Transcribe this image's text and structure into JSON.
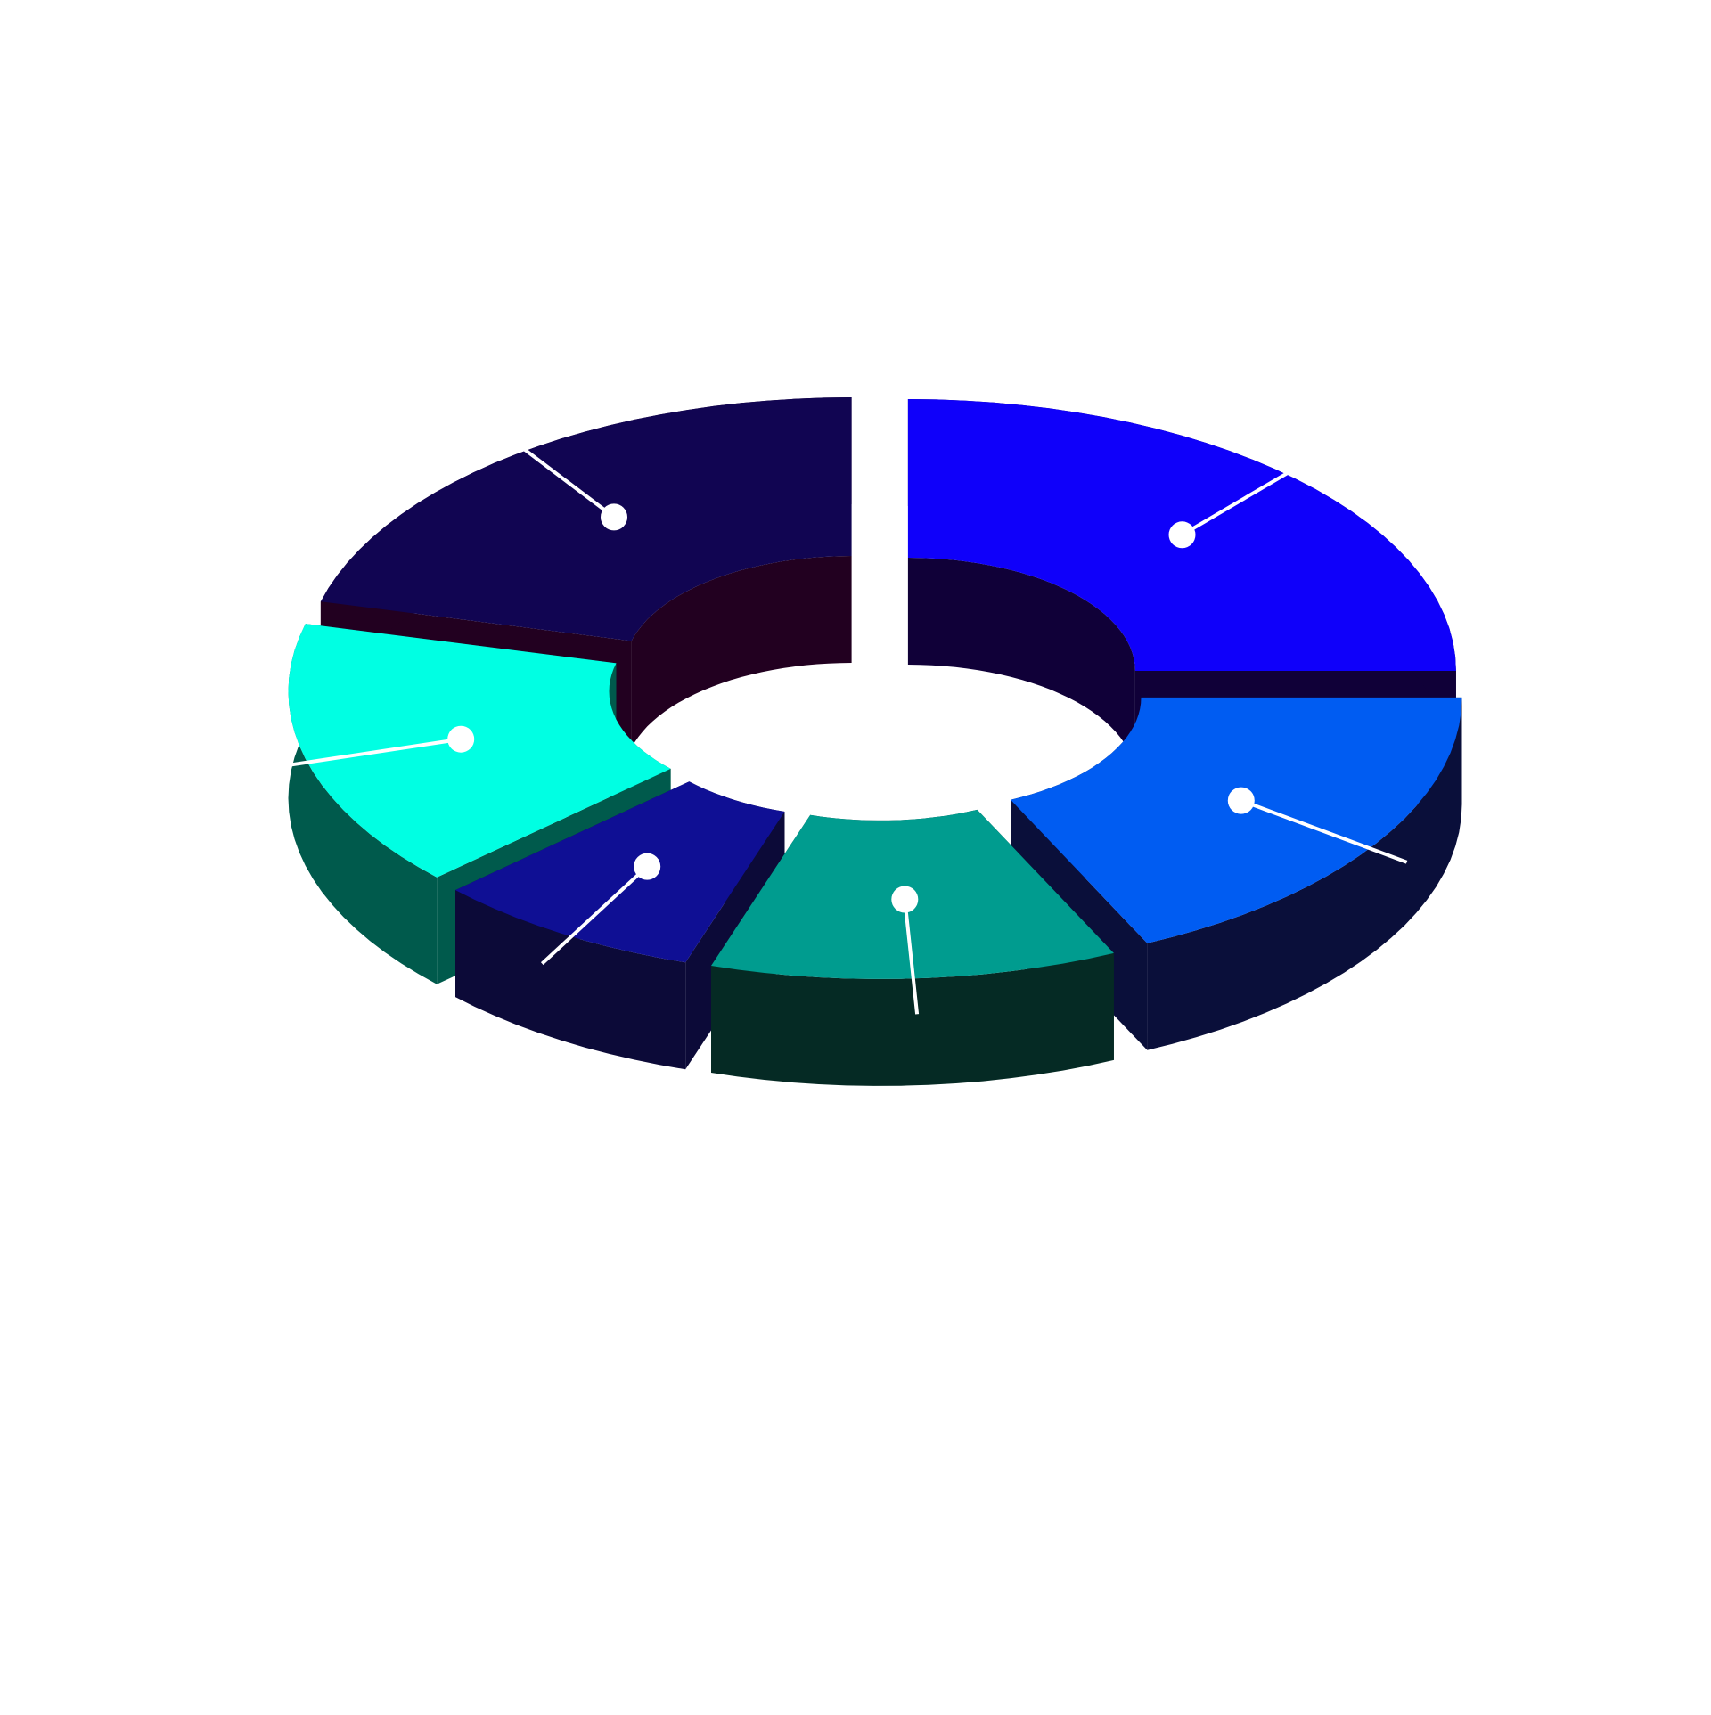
{
  "chart_data": {
    "type": "pie",
    "style": "3d-exploded-donut",
    "title": "",
    "categories": [
      "",
      "",
      "",
      "",
      "",
      ""
    ],
    "values": [
      25,
      18,
      12,
      8,
      16,
      21
    ],
    "colors": [
      "#0f00fa",
      "#005cf2",
      "#009c8f",
      "#0f0f94",
      "#00ffe3",
      "#110552"
    ],
    "side_colors": [
      "#100038",
      "#0a0f3a",
      "#052a24",
      "#0c0a38",
      "#005a4c",
      "#220020"
    ],
    "legend": "none",
    "data_labels": "none"
  }
}
